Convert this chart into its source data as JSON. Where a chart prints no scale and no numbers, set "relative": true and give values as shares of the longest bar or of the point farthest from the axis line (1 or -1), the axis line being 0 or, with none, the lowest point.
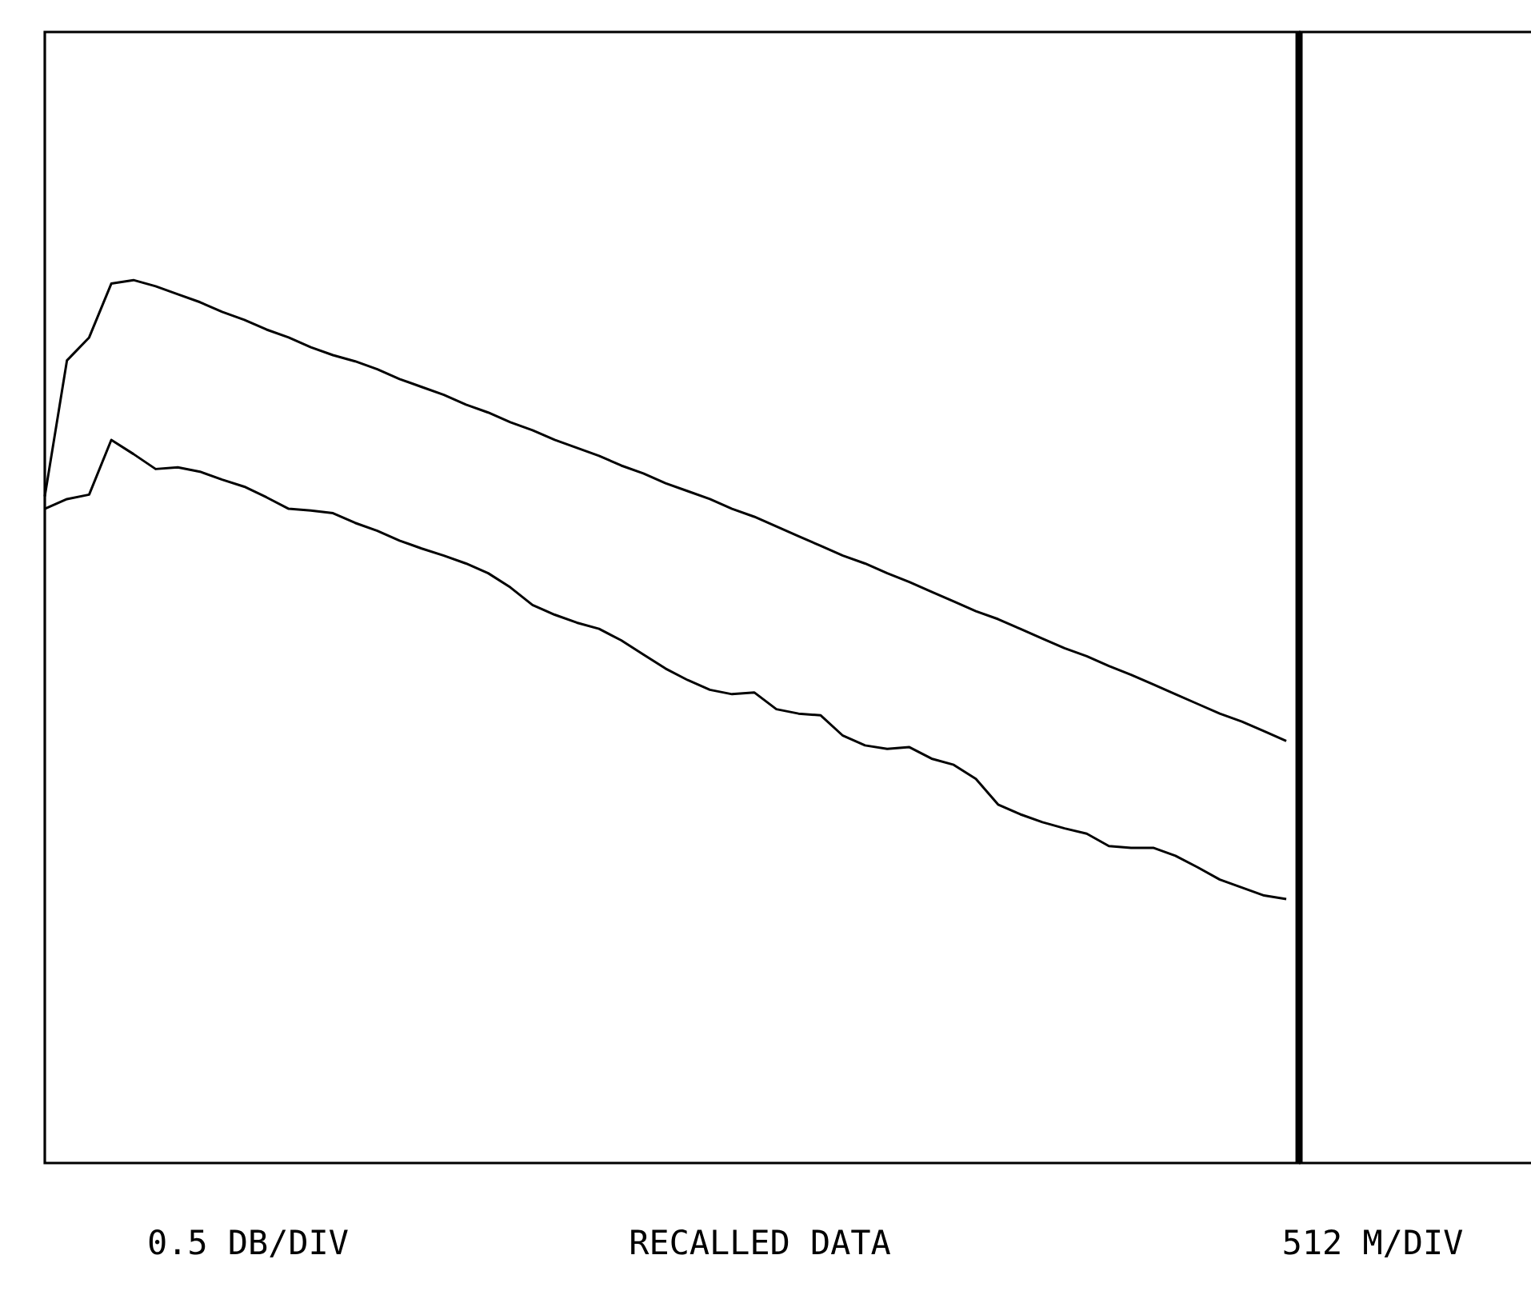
{
  "chart_data": {
    "type": "line",
    "relative": true,
    "marker": "none",
    "line_style": "solid",
    "categories": [
      null,
      null,
      null,
      null,
      null,
      null,
      null,
      null,
      null,
      null,
      null,
      null,
      null,
      null,
      null,
      null,
      null,
      null,
      null,
      null,
      null,
      null,
      null,
      null,
      null,
      null,
      null,
      null,
      null,
      null,
      null,
      null,
      null,
      null,
      null,
      null,
      null,
      null,
      null,
      null,
      null,
      null,
      null,
      null,
      null,
      null,
      null,
      null,
      null,
      null,
      null,
      null,
      null,
      null,
      null,
      null,
      null
    ],
    "series": [
      {
        "color": "#000000",
        "values": [
          0.755,
          0.909,
          0.935,
          0.996,
          1,
          0.993,
          0.984,
          0.975,
          0.964,
          0.955,
          0.944,
          0.935,
          0.924,
          0.915,
          0.908,
          0.899,
          0.888,
          0.879,
          0.87,
          0.859,
          0.85,
          0.839,
          0.83,
          0.819,
          0.81,
          0.801,
          0.79,
          0.781,
          0.77,
          0.761,
          0.752,
          0.741,
          0.732,
          0.721,
          0.71,
          0.699,
          0.688,
          0.679,
          0.668,
          0.658,
          0.647,
          0.636,
          0.625,
          0.616,
          0.605,
          0.594,
          0.583,
          0.574,
          0.563,
          0.553,
          0.542,
          0.531,
          0.52,
          0.509,
          0.5,
          0.489,
          0.478
        ]
      },
      {
        "color": "#000000",
        "values": [
          0.741,
          0.752,
          0.757,
          0.819,
          0.803,
          0.786,
          0.788,
          0.783,
          0.774,
          0.766,
          0.754,
          0.741,
          0.739,
          0.736,
          0.725,
          0.716,
          0.705,
          0.696,
          0.688,
          0.679,
          0.668,
          0.652,
          0.632,
          0.621,
          0.612,
          0.605,
          0.592,
          0.576,
          0.56,
          0.547,
          0.536,
          0.531,
          0.533,
          0.514,
          0.509,
          0.507,
          0.484,
          0.473,
          0.469,
          0.471,
          0.458,
          0.451,
          0.435,
          0.406,
          0.395,
          0.386,
          0.379,
          0.373,
          0.359,
          0.357,
          0.357,
          0.348,
          0.335,
          0.321,
          0.312,
          0.303,
          0.299
        ]
      }
    ],
    "annotations": [
      "0.5 DB/DIV",
      "RECALLED DATA",
      "512 M/DIV"
    ]
  }
}
